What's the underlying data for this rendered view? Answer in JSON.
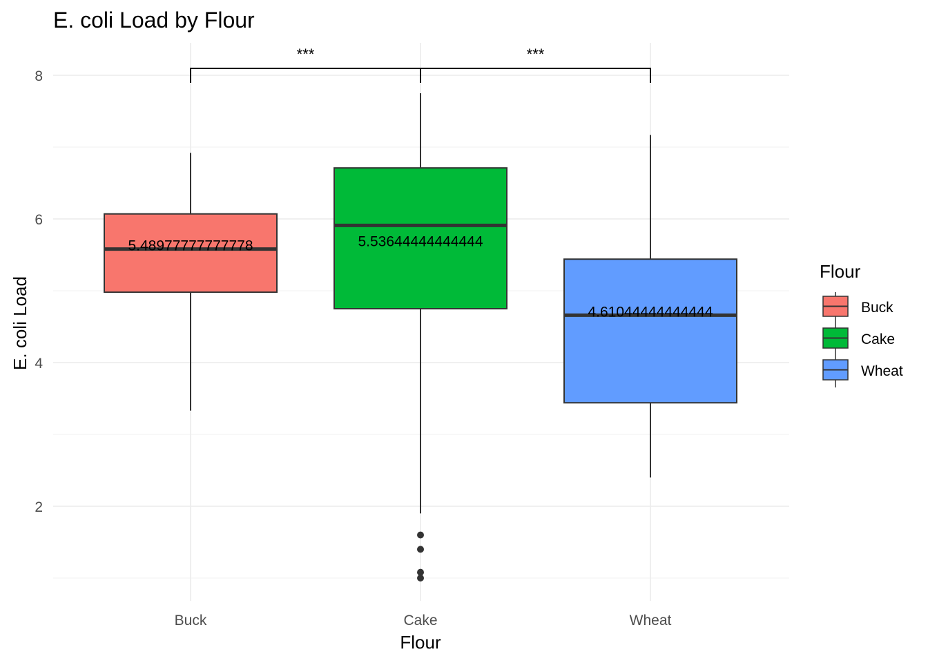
{
  "chart_data": {
    "type": "box",
    "title": "E. coli Load by Flour",
    "xlabel": "Flour",
    "ylabel": "E. coli Load",
    "categories": [
      "Buck",
      "Cake",
      "Wheat"
    ],
    "ylim": [
      0.7,
      8.5
    ],
    "yticks": [
      2,
      4,
      6,
      8
    ],
    "grid": true,
    "legend": {
      "title": "Flour",
      "position": "right",
      "items": [
        {
          "label": "Buck",
          "color": "#F8766D"
        },
        {
          "label": "Cake",
          "color": "#00BA38"
        },
        {
          "label": "Wheat",
          "color": "#619CFF"
        }
      ]
    },
    "boxes": [
      {
        "category": "Buck",
        "color": "#F8766D",
        "min": 3.33,
        "q1": 4.98,
        "median": 5.58,
        "q3": 6.07,
        "max": 6.92,
        "outliers": [],
        "label": "5.48977777777778"
      },
      {
        "category": "Cake",
        "color": "#00BA38",
        "min": 1.9,
        "q1": 4.75,
        "median": 5.91,
        "q3": 6.71,
        "max": 7.75,
        "outliers": [
          1.6,
          1.4,
          1.08,
          1.0
        ],
        "label": "5.53644444444444"
      },
      {
        "category": "Wheat",
        "color": "#619CFF",
        "min": 2.4,
        "q1": 3.44,
        "median": 4.66,
        "q3": 5.44,
        "max": 7.17,
        "outliers": [],
        "label": "4.61044444444444"
      }
    ],
    "significance": [
      {
        "from": "Buck",
        "to": "Cake",
        "label": "***"
      },
      {
        "from": "Cake",
        "to": "Wheat",
        "label": "***"
      }
    ]
  }
}
